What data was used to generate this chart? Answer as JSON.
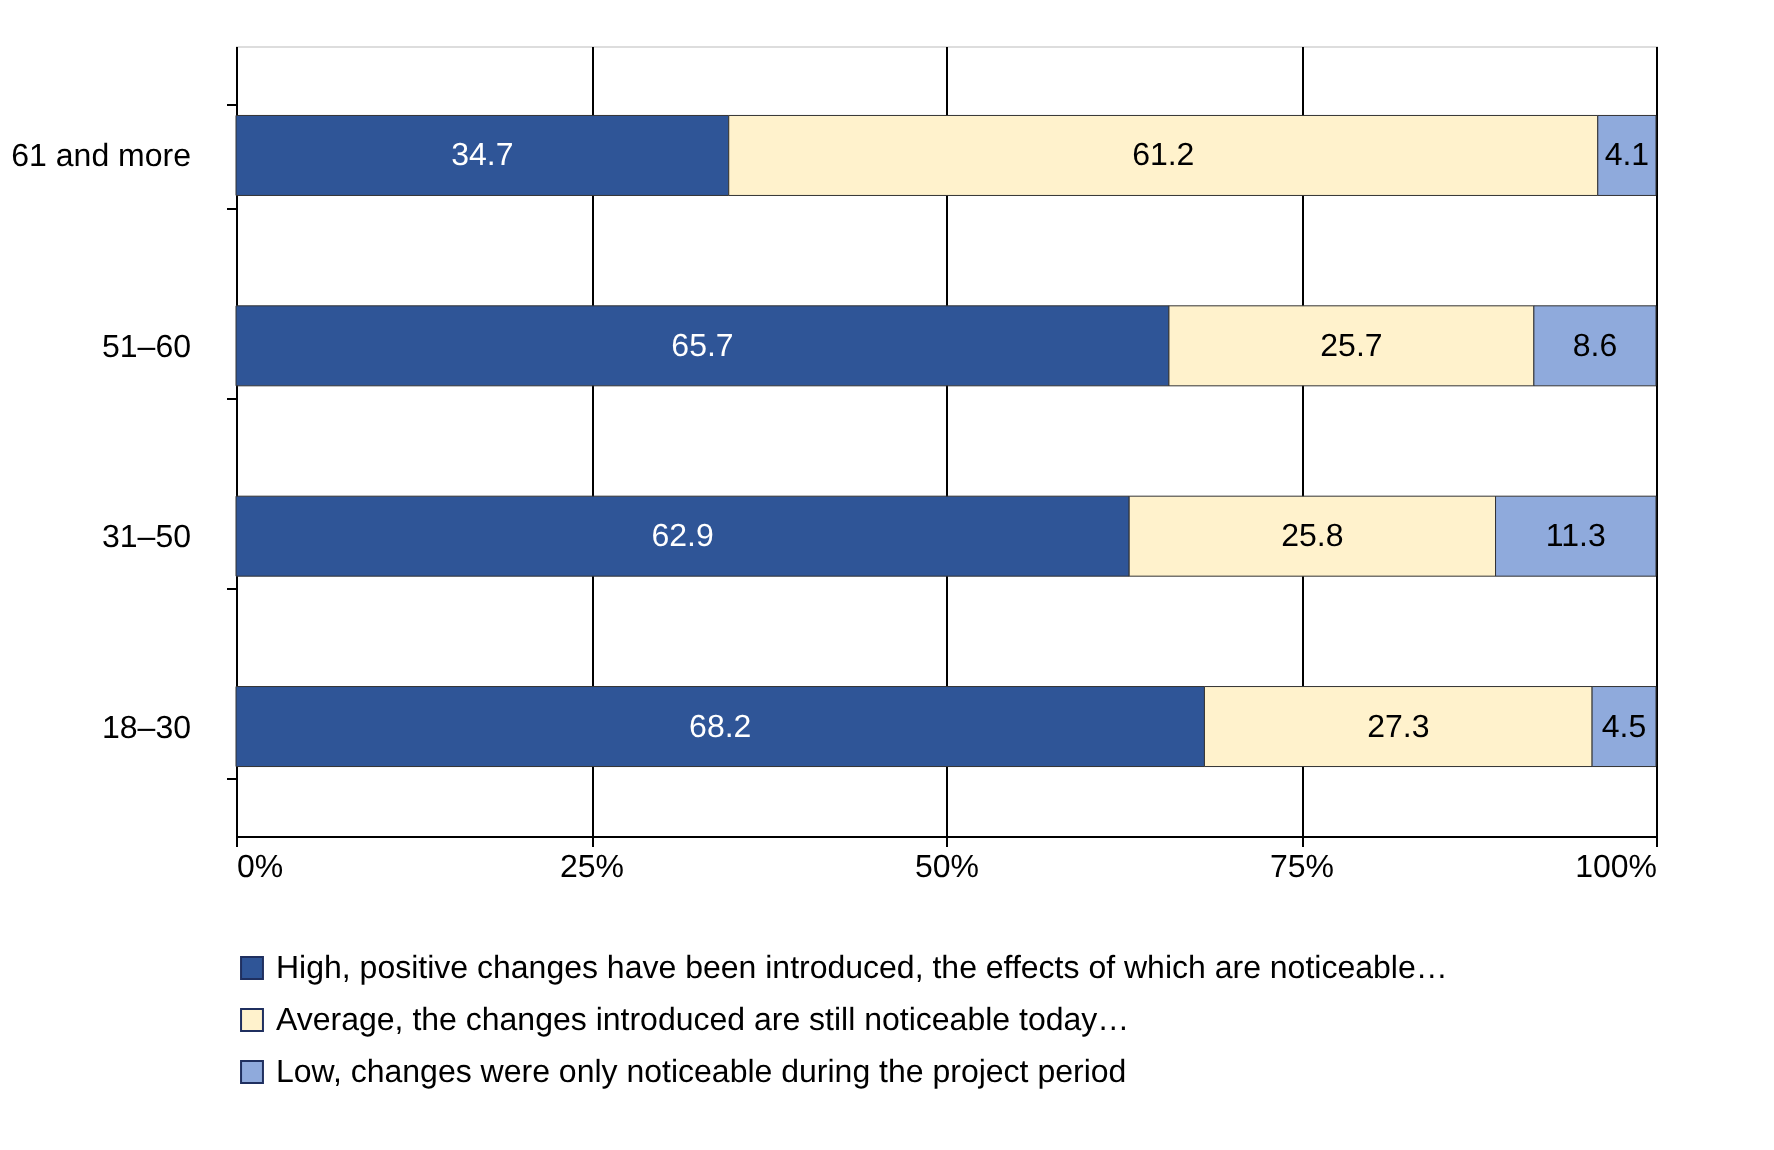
{
  "chart_data": {
    "type": "bar",
    "orientation": "horizontal",
    "stacked": true,
    "data_labels": true,
    "grid": "x",
    "legend": "bottom",
    "categories": [
      "61 and more",
      "51–60",
      "31–50",
      "18–30"
    ],
    "xlim": [
      0,
      100
    ],
    "xticks": [
      {
        "value": 0,
        "label": "0%"
      },
      {
        "value": 25,
        "label": "25%"
      },
      {
        "value": 50,
        "label": "50%"
      },
      {
        "value": 75,
        "label": "75%"
      },
      {
        "value": 100,
        "label": "100%"
      }
    ],
    "series": [
      {
        "name": "High, positive changes have been introduced, the effects of which are noticeable…",
        "color": "#2f5597",
        "values": [
          34.7,
          65.7,
          62.9,
          68.2
        ]
      },
      {
        "name": "Average, the changes introduced are still noticeable today…",
        "color": "#fff2cc",
        "values": [
          61.2,
          25.7,
          25.8,
          27.3
        ]
      },
      {
        "name": "Low, changes were only noticeable during the project period",
        "color": "#8faadc",
        "values": [
          4.1,
          8.6,
          11.3,
          4.5
        ]
      }
    ]
  }
}
